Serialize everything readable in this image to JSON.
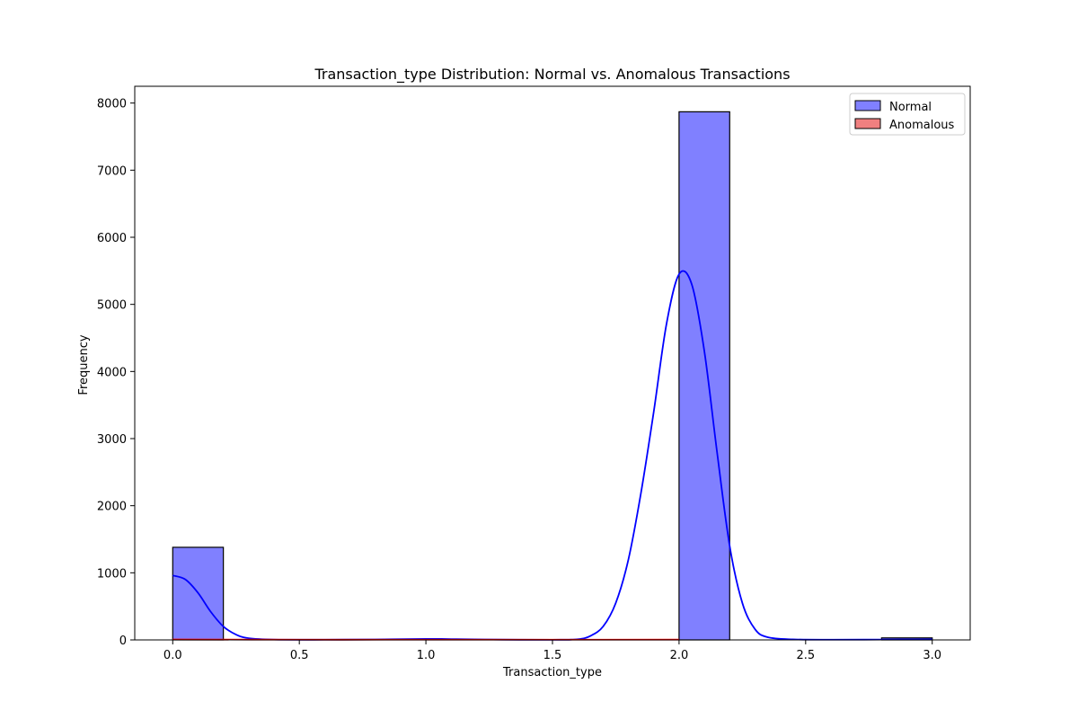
{
  "chart_data": {
    "type": "bar",
    "title": "Transaction_type Distribution: Normal vs. Anomalous Transactions",
    "xlabel": "Transaction_type",
    "ylabel": "Frequency",
    "xlim": [
      -0.15,
      3.15
    ],
    "ylim": [
      0,
      8250
    ],
    "xticks": [
      0.0,
      0.5,
      1.0,
      1.5,
      2.0,
      2.5,
      3.0
    ],
    "xtick_labels": [
      "0.0",
      "0.5",
      "1.0",
      "1.5",
      "2.0",
      "2.5",
      "3.0"
    ],
    "yticks": [
      0,
      1000,
      2000,
      3000,
      4000,
      5000,
      6000,
      7000,
      8000
    ],
    "ytick_labels": [
      "0",
      "1000",
      "2000",
      "3000",
      "4000",
      "5000",
      "6000",
      "7000",
      "8000"
    ],
    "grid": false,
    "legend_position": "top-right",
    "series": [
      {
        "name": "Normal",
        "color": "#8080ff",
        "edge_color": "#000000",
        "bins": [
          {
            "x0": 0.0,
            "x1": 0.2,
            "count": 1380
          },
          {
            "x0": 2.0,
            "x1": 2.2,
            "count": 7870
          },
          {
            "x0": 2.8,
            "x1": 3.0,
            "count": 30
          }
        ],
        "kde": {
          "color": "#0000ff",
          "points": [
            [
              0.0,
              960
            ],
            [
              0.05,
              900
            ],
            [
              0.1,
              700
            ],
            [
              0.15,
              420
            ],
            [
              0.2,
              200
            ],
            [
              0.25,
              80
            ],
            [
              0.3,
              25
            ],
            [
              0.4,
              5
            ],
            [
              0.6,
              3
            ],
            [
              0.8,
              6
            ],
            [
              1.0,
              15
            ],
            [
              1.1,
              12
            ],
            [
              1.3,
              4
            ],
            [
              1.5,
              2
            ],
            [
              1.6,
              10
            ],
            [
              1.65,
              60
            ],
            [
              1.7,
              200
            ],
            [
              1.75,
              550
            ],
            [
              1.8,
              1200
            ],
            [
              1.85,
              2200
            ],
            [
              1.9,
              3400
            ],
            [
              1.95,
              4700
            ],
            [
              2.0,
              5450
            ],
            [
              2.05,
              5300
            ],
            [
              2.1,
              4300
            ],
            [
              2.15,
              2800
            ],
            [
              2.2,
              1400
            ],
            [
              2.25,
              550
            ],
            [
              2.3,
              160
            ],
            [
              2.35,
              40
            ],
            [
              2.45,
              8
            ],
            [
              2.6,
              3
            ],
            [
              2.8,
              5
            ],
            [
              3.0,
              8
            ]
          ]
        }
      },
      {
        "name": "Anomalous",
        "color": "#f08080",
        "edge_color": "#000000",
        "bins": [],
        "kde": {
          "color": "#ff0000",
          "points": [
            [
              0.0,
              6
            ],
            [
              0.5,
              3
            ],
            [
              1.0,
              3
            ],
            [
              1.5,
              3
            ],
            [
              2.0,
              4
            ]
          ]
        }
      }
    ]
  }
}
